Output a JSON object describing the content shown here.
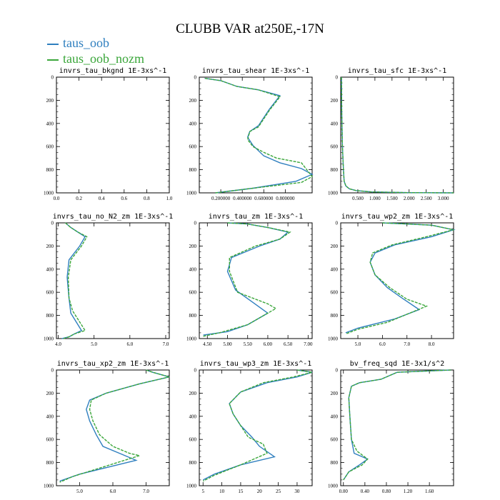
{
  "title": "CLUBB VAR at250E,-17N",
  "legend": [
    {
      "label": "taus_oob",
      "color": "#2f7fbf"
    },
    {
      "label": "taus_oob_nozm",
      "color": "#3aa63a"
    }
  ],
  "chart_data": [
    {
      "type": "line",
      "title": "invrs_tau_bkgnd  1E-3xs^-1",
      "xticks": [
        "0.0",
        "0.2",
        "0.4",
        "0.6",
        "0.8",
        "1.0"
      ],
      "xlim": [
        0,
        1
      ],
      "ylim": [
        0,
        1000
      ],
      "yticks": [
        "0",
        "200",
        "400",
        "600",
        "800",
        "1000"
      ],
      "series": []
    },
    {
      "type": "line",
      "title": "invrs_tau_shear  1E-3xs^-1",
      "xticks": [
        "0.200000",
        "0.400000",
        "0.600000",
        "0.800000"
      ],
      "xlim": [
        0.0,
        1.05
      ],
      "ylim": [
        0,
        1000
      ],
      "yticks": [
        "0",
        "200",
        "400",
        "600",
        "800",
        "1000"
      ],
      "series": [
        {
          "name": "taus_oob",
          "x": [
            0.15,
            0.5,
            0.9,
            1.05,
            0.95,
            0.75,
            0.6,
            0.5,
            0.45,
            0.47,
            0.55,
            0.65,
            0.75,
            0.55,
            0.35,
            0.2,
            0.05
          ],
          "y": [
            1000,
            960,
            900,
            840,
            790,
            740,
            680,
            590,
            520,
            470,
            420,
            280,
            160,
            110,
            80,
            30,
            10
          ]
        },
        {
          "name": "taus_oob_nozm",
          "x": [
            0.15,
            0.5,
            0.95,
            1.05,
            0.95,
            0.72,
            0.6,
            0.5,
            0.45,
            0.47,
            0.55,
            0.65,
            0.75,
            0.55,
            0.35,
            0.2,
            0.05
          ],
          "y": [
            1000,
            960,
            910,
            860,
            740,
            700,
            650,
            600,
            540,
            470,
            430,
            290,
            170,
            110,
            80,
            30,
            10
          ]
        }
      ]
    },
    {
      "type": "line",
      "title": "invrs_tau_sfc  1E-3xs^-1",
      "xticks": [
        "0.500",
        "1.000",
        "1.500",
        "2.000",
        "2.500",
        "3.000"
      ],
      "xlim": [
        0,
        3.3
      ],
      "ylim": [
        0,
        1000
      ],
      "yticks": [
        "0",
        "200",
        "400",
        "600",
        "800",
        "1000"
      ],
      "series": [
        {
          "name": "taus_oob",
          "x": [
            0.02,
            0.03,
            0.05,
            0.08,
            0.1,
            0.15,
            0.25,
            0.45,
            0.9,
            2.0,
            3.3
          ],
          "y": [
            0,
            300,
            600,
            800,
            900,
            940,
            965,
            980,
            992,
            998,
            1000
          ]
        },
        {
          "name": "taus_oob_nozm",
          "x": [
            0.02,
            0.03,
            0.05,
            0.08,
            0.1,
            0.15,
            0.25,
            0.45,
            0.9,
            2.0,
            3.3
          ],
          "y": [
            0,
            300,
            600,
            800,
            900,
            940,
            965,
            980,
            992,
            998,
            1000
          ]
        }
      ]
    },
    {
      "type": "line",
      "title": "invrs_tau_no_N2_zm  1E-3xs^-1",
      "xticks": [
        "4.0",
        "5.0",
        "6.0",
        "7.0"
      ],
      "xlim": [
        3.95,
        7.1
      ],
      "ylim": [
        0,
        1000
      ],
      "yticks": [
        "0",
        "200",
        "400",
        "600",
        "800",
        "1000"
      ],
      "series": [
        {
          "name": "taus_oob",
          "x": [
            4.2,
            4.35,
            4.55,
            4.75,
            4.6,
            4.3,
            4.25,
            4.3,
            4.35,
            4.65,
            4.45,
            4.3,
            4.1
          ],
          "y": [
            0,
            40,
            80,
            120,
            200,
            320,
            470,
            650,
            780,
            930,
            960,
            985,
            1000
          ]
        },
        {
          "name": "taus_oob_nozm",
          "x": [
            4.2,
            4.35,
            4.55,
            4.8,
            4.65,
            4.35,
            4.28,
            4.3,
            4.4,
            4.75,
            4.45,
            4.3,
            4.15
          ],
          "y": [
            0,
            40,
            80,
            120,
            200,
            320,
            470,
            650,
            760,
            930,
            960,
            985,
            1000
          ]
        }
      ]
    },
    {
      "type": "line",
      "title": "invrs_tau_zm  1E-3xs^-1",
      "xticks": [
        "4.50",
        "5.00",
        "5.50",
        "6.00",
        "6.50",
        "7.00"
      ],
      "xlim": [
        4.3,
        7.1
      ],
      "ylim": [
        0,
        1000
      ],
      "yticks": [
        "0",
        "200",
        "400",
        "600",
        "800",
        "1000"
      ],
      "series": [
        {
          "name": "taus_oob",
          "x": [
            5.0,
            5.5,
            6.0,
            6.5,
            6.3,
            5.8,
            5.1,
            5.0,
            5.2,
            5.6,
            6.0,
            5.5,
            5.0,
            4.4
          ],
          "y": [
            0,
            10,
            40,
            80,
            140,
            200,
            300,
            420,
            580,
            680,
            780,
            880,
            940,
            970
          ]
        },
        {
          "name": "taus_oob_nozm",
          "x": [
            5.0,
            5.5,
            6.0,
            6.55,
            6.3,
            5.7,
            5.05,
            5.05,
            5.25,
            6.0,
            6.2,
            5.5,
            4.8,
            4.4
          ],
          "y": [
            0,
            10,
            40,
            80,
            140,
            200,
            300,
            420,
            600,
            700,
            740,
            880,
            950,
            980
          ]
        }
      ]
    },
    {
      "type": "line",
      "title": "invrs_tau_wp2_zm  1E-3xs^-1",
      "xticks": [
        "5.0",
        "6.0",
        "7.0",
        "8.0"
      ],
      "xlim": [
        4.3,
        8.9
      ],
      "ylim": [
        0,
        1000
      ],
      "yticks": [
        "0",
        "200",
        "400",
        "600",
        "800",
        "1000"
      ],
      "series": [
        {
          "name": "taus_oob",
          "x": [
            6.0,
            8.0,
            8.9,
            8.0,
            6.5,
            5.7,
            5.5,
            5.7,
            6.2,
            6.8,
            7.5,
            6.5,
            5.0,
            4.5
          ],
          "y": [
            0,
            20,
            60,
            120,
            190,
            260,
            340,
            450,
            560,
            650,
            750,
            830,
            910,
            950
          ]
        },
        {
          "name": "taus_oob_nozm",
          "x": [
            6.0,
            8.0,
            8.9,
            7.8,
            6.4,
            5.6,
            5.5,
            5.7,
            6.3,
            7.0,
            7.8,
            6.2,
            5.0,
            4.5
          ],
          "y": [
            0,
            20,
            60,
            120,
            190,
            260,
            340,
            450,
            560,
            660,
            720,
            860,
            920,
            960
          ]
        }
      ]
    },
    {
      "type": "line",
      "title": "invrs_tau_xp2_zm  1E-3xs^-1",
      "xticks": [
        "5.0",
        "6.0",
        "7.0"
      ],
      "xlim": [
        4.3,
        7.7
      ],
      "ylim": [
        0,
        1000
      ],
      "yticks": [
        "0",
        "200",
        "400",
        "600",
        "800",
        "1000"
      ],
      "series": [
        {
          "name": "taus_oob",
          "x": [
            7.0,
            7.2,
            7.7,
            6.8,
            5.8,
            5.3,
            5.2,
            5.3,
            5.5,
            5.7,
            6.2,
            6.7,
            5.0,
            4.4
          ],
          "y": [
            0,
            20,
            60,
            120,
            200,
            260,
            340,
            440,
            560,
            660,
            720,
            780,
            900,
            960
          ]
        },
        {
          "name": "taus_oob_nozm",
          "x": [
            7.0,
            7.2,
            7.7,
            6.8,
            5.8,
            5.35,
            5.3,
            5.4,
            5.6,
            6.0,
            6.5,
            6.8,
            4.8,
            4.4
          ],
          "y": [
            0,
            20,
            60,
            120,
            200,
            260,
            340,
            440,
            560,
            660,
            720,
            740,
            920,
            970
          ]
        }
      ]
    },
    {
      "type": "line",
      "title": "invrs_tau_wp3_zm  1E-3xs^-1",
      "xticks": [
        "5",
        "10",
        "15",
        "20",
        "25",
        "30"
      ],
      "xlim": [
        4,
        34
      ],
      "ylim": [
        0,
        1000
      ],
      "yticks": [
        "0",
        "200",
        "400",
        "600",
        "800",
        "1000"
      ],
      "series": [
        {
          "name": "taus_oob",
          "x": [
            30,
            34,
            30,
            22,
            15,
            12,
            13,
            15,
            18,
            20,
            24,
            15,
            8,
            5
          ],
          "y": [
            0,
            20,
            60,
            110,
            190,
            290,
            380,
            480,
            580,
            660,
            750,
            820,
            900,
            950
          ]
        },
        {
          "name": "taus_oob_nozm",
          "x": [
            30,
            34,
            29,
            21,
            15,
            12,
            13,
            15,
            17,
            21,
            22,
            15,
            8,
            5
          ],
          "y": [
            0,
            20,
            60,
            110,
            190,
            290,
            380,
            480,
            580,
            640,
            720,
            820,
            910,
            960
          ]
        }
      ]
    },
    {
      "type": "line",
      "title": "bv_freq_sqd  1E-3x1/s^2",
      "xticks": [
        "0.00",
        "0.40",
        "0.80",
        "1.20",
        "1.60"
      ],
      "xlim": [
        -0.05,
        2.05
      ],
      "ylim": [
        0,
        1000
      ],
      "yticks": [
        "0",
        "200",
        "400",
        "600",
        "800",
        "1000"
      ],
      "series": [
        {
          "name": "taus_oob",
          "x": [
            2.0,
            1.0,
            0.7,
            0.3,
            0.15,
            0.1,
            0.12,
            0.15,
            0.2,
            0.45,
            0.3,
            0.1,
            0.0
          ],
          "y": [
            0,
            20,
            80,
            110,
            140,
            240,
            400,
            600,
            720,
            770,
            820,
            880,
            950
          ]
        },
        {
          "name": "taus_oob_nozm",
          "x": [
            2.0,
            1.0,
            0.7,
            0.3,
            0.15,
            0.1,
            0.12,
            0.15,
            0.25,
            0.45,
            0.35,
            0.1,
            0.0
          ],
          "y": [
            0,
            20,
            80,
            110,
            140,
            240,
            400,
            600,
            700,
            770,
            820,
            880,
            950
          ]
        }
      ]
    }
  ]
}
